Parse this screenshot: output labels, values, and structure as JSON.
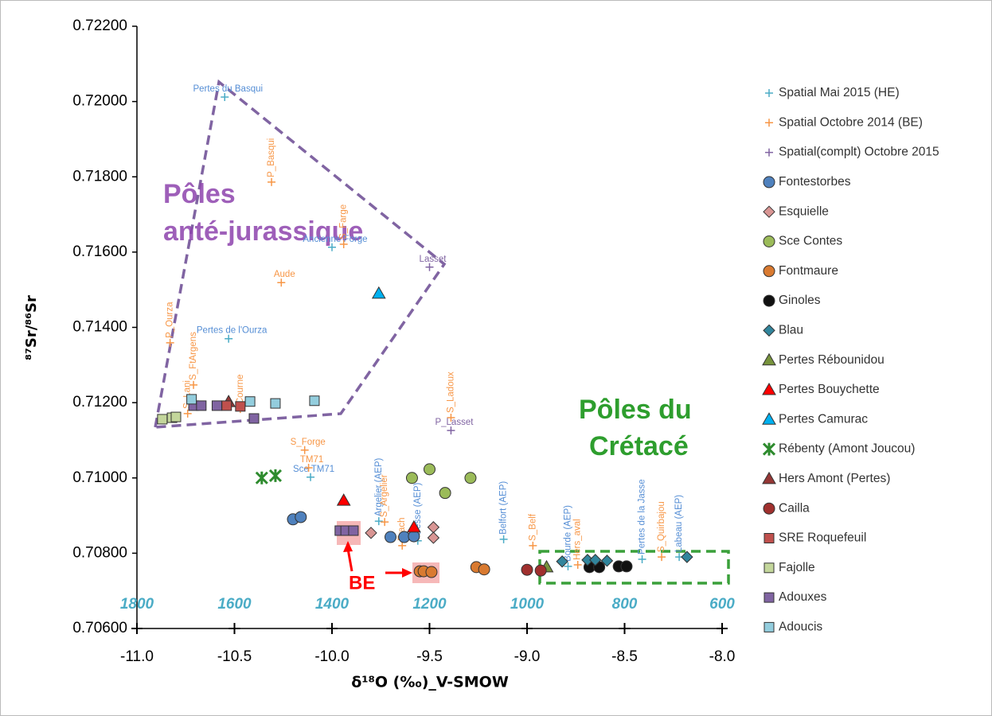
{
  "chart_data": {
    "type": "scatter",
    "x_label": "δ¹⁸O (‰)_V-SMOW",
    "y_label": "⁸⁷Sr/⁸⁶Sr",
    "xlim": [
      -11.0,
      -8.0
    ],
    "xticks": [
      {
        "value": -11,
        "label": "-11.0"
      },
      {
        "value": -10.5,
        "label": "-10.5"
      },
      {
        "value": -10,
        "label": "-10.0"
      },
      {
        "value": -9.5,
        "label": "-9.5"
      },
      {
        "value": -9,
        "label": "-9.0"
      },
      {
        "value": -8.5,
        "label": "-8.5"
      },
      {
        "value": -8,
        "label": "-8.0"
      }
    ],
    "ylim": [
      0.706,
      0.722
    ],
    "yticks": [
      {
        "value": 0.706,
        "label": "0.70600"
      },
      {
        "value": 0.708,
        "label": "0.70800"
      },
      {
        "value": 0.71,
        "label": "0.71000"
      },
      {
        "value": 0.712,
        "label": "0.71200"
      },
      {
        "value": 0.714,
        "label": "0.71400"
      },
      {
        "value": 0.716,
        "label": "0.71600"
      },
      {
        "value": 0.718,
        "label": "0.71800"
      },
      {
        "value": 0.72,
        "label": "0.72000"
      },
      {
        "value": 0.722,
        "label": "0.72200"
      }
    ],
    "x2lim": [
      1800,
      600
    ],
    "x2ticks": [
      1800,
      1600,
      1400,
      1200,
      1000,
      800,
      600
    ],
    "annotations": [
      "Pôles",
      "anté-jurassique",
      "Pôles du",
      "Crétacé",
      "BE"
    ],
    "series": [
      {
        "name": "Spatial Mai 2015 (HE)",
        "marker": "plus",
        "color": "#4bacc6",
        "label_color": "#558ed5",
        "x": [
          -10.55,
          -10.0,
          -10.53,
          -10.11,
          -9.76,
          -9.56,
          -9.12,
          -8.79,
          -8.41,
          -8.22
        ],
        "values": [
          0.72012,
          0.71613,
          0.7137,
          0.71002,
          0.70885,
          0.70833,
          0.70837,
          0.70765,
          0.70784,
          0.7079
        ],
        "labels": [
          "Pertes du Basqui",
          "Ancienne Forge",
          "Pertes de l'Ourza",
          "Sce TM71",
          "Argelier (AEP)",
          "Gesse (AEP)",
          "Belfort (AEP)",
          "Bourde (AEP)",
          "Pertes de la Jasse",
          "Labeau (AEP)"
        ]
      },
      {
        "name": "Spatial Octobre 2014 (BE)",
        "marker": "plus",
        "color": "#f79646",
        "label_color": "#f79646",
        "x": [
          -10.31,
          -9.94,
          -10.26,
          -10.83,
          -10.71,
          -10.47,
          -10.74,
          -10.14,
          -10.12,
          -9.73,
          -9.64,
          -9.39,
          -8.97,
          -8.74,
          -8.31
        ],
        "values": [
          0.71786,
          0.71621,
          0.71519,
          0.71359,
          0.71247,
          0.71183,
          0.71171,
          0.71074,
          0.71027,
          0.70883,
          0.7082,
          0.7116,
          0.7082,
          0.70769,
          0.7079
        ],
        "labels": [
          "P_Basqui",
          "S_Farge",
          "Aude",
          "P_Ourza",
          "S_FtArgens",
          "Courne",
          "S_Lani",
          "S_Forge",
          "TM71",
          "S_Argelier",
          "Frach",
          "S_Ladoux",
          "S_Belf",
          "Hers_aval",
          "S_Quirbajou"
        ]
      },
      {
        "name": "Spatial(complt) Octobre 2015",
        "marker": "plus",
        "color": "#8064a2",
        "label_color": "#8064a2",
        "x": [
          -9.5,
          -9.39
        ],
        "values": [
          0.7156,
          0.71126
        ],
        "labels": [
          "Lasset",
          "P_Lasset"
        ]
      },
      {
        "name": "Fontestorbes",
        "marker": "circle",
        "color": "#4f81bd",
        "x": [
          -10.2,
          -10.16,
          -9.7,
          -9.63,
          -9.58
        ],
        "values": [
          0.7089,
          0.70896,
          0.70843,
          0.70843,
          0.70845
        ]
      },
      {
        "name": "Esquielle",
        "marker": "diamond",
        "color": "#d99694",
        "x": [
          -9.8,
          -9.48,
          -9.48
        ],
        "values": [
          0.70854,
          0.70869,
          0.70841
        ]
      },
      {
        "name": "Sce Contes",
        "marker": "circle",
        "color": "#9bbb59",
        "x": [
          -9.59,
          -9.5,
          -9.42,
          -9.29
        ],
        "values": [
          0.71,
          0.71023,
          0.7096,
          0.71
        ]
      },
      {
        "name": "Fontmaure",
        "marker": "circle",
        "color": "#d97a30",
        "x": [
          -9.55,
          -9.53,
          -9.49,
          -9.26,
          -9.22
        ],
        "values": [
          0.70752,
          0.70752,
          0.7075,
          0.70763,
          0.70757
        ]
      },
      {
        "name": "Ginoles",
        "marker": "circle",
        "color": "#111111",
        "x": [
          -8.68,
          -8.63,
          -8.53,
          -8.49
        ],
        "values": [
          0.70763,
          0.70763,
          0.70765,
          0.70765
        ]
      },
      {
        "name": "Blau",
        "marker": "diamond",
        "color": "#31859c",
        "x": [
          -8.82,
          -8.69,
          -8.65,
          -8.59,
          -8.18
        ],
        "values": [
          0.70778,
          0.70782,
          0.70782,
          0.7078,
          0.7079
        ]
      },
      {
        "name": "Pertes Rébounidou",
        "marker": "triangle",
        "color": "#77933c",
        "x": [
          -8.9
        ],
        "values": [
          0.70763
        ]
      },
      {
        "name": "Pertes Bouychette",
        "marker": "triangle",
        "color": "#ff0000",
        "x": [
          -9.94,
          -9.58
        ],
        "values": [
          0.7094,
          0.70869
        ]
      },
      {
        "name": "Pertes Camurac",
        "marker": "triangle",
        "color": "#00b0f0",
        "x": [
          -9.76
        ],
        "values": [
          0.7149
        ]
      },
      {
        "name": "Rébenty (Amont Joucou)",
        "marker": "star",
        "color": "#ccff00",
        "x": [
          -10.36,
          -10.29
        ],
        "values": [
          0.71,
          0.71006
        ]
      },
      {
        "name": "Hers Amont (Pertes)",
        "marker": "triangle",
        "color": "#953735",
        "x": [
          -10.53
        ],
        "values": [
          0.71202
        ]
      },
      {
        "name": "Cailla",
        "marker": "circle",
        "color": "#a0302e",
        "x": [
          -9.0,
          -8.93
        ],
        "values": [
          0.70756,
          0.70754
        ]
      },
      {
        "name": "SRE Roquefeuil",
        "marker": "square",
        "color": "#c0504d",
        "x": [
          -10.54,
          -10.47
        ],
        "values": [
          0.71192,
          0.7119
        ]
      },
      {
        "name": "Fajolle",
        "marker": "square",
        "color": "#c3d69b",
        "x": [
          -10.87,
          -10.82,
          -10.8
        ],
        "values": [
          0.71156,
          0.7116,
          0.71162
        ]
      },
      {
        "name": "Adouxes",
        "marker": "square",
        "color": "#8064a2",
        "x": [
          -10.71,
          -10.67,
          -10.59,
          -10.4,
          -9.96,
          -9.93,
          -9.89
        ],
        "values": [
          0.71192,
          0.71192,
          0.71192,
          0.71158,
          0.7086,
          0.7086,
          0.7086
        ]
      },
      {
        "name": "Adoucis",
        "marker": "square",
        "color": "#93cddd",
        "x": [
          -10.72,
          -10.42,
          -10.29,
          -10.09
        ],
        "values": [
          0.71209,
          0.71203,
          0.71198,
          0.71205
        ]
      }
    ]
  }
}
